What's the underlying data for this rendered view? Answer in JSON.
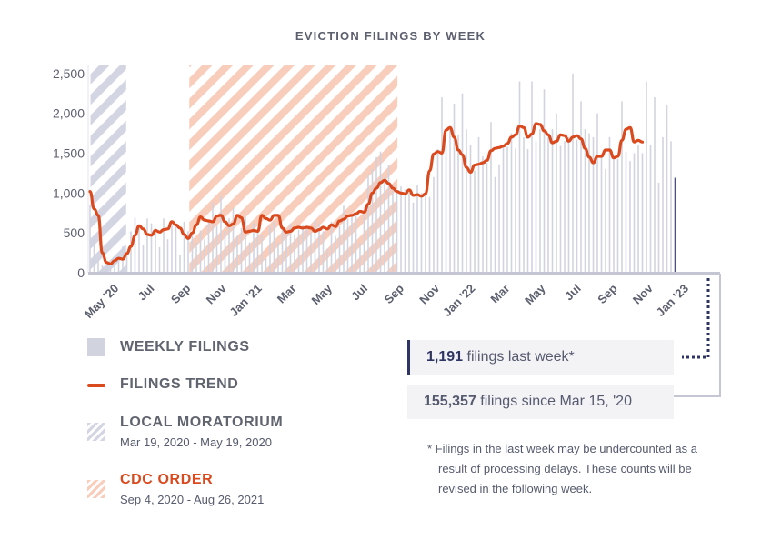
{
  "title": "EVICTION FILINGS BY WEEK",
  "legend": {
    "weekly": "WEEKLY FILINGS",
    "trend": "FILINGS TREND",
    "local": "LOCAL MORATORIUM",
    "local_dates": "Mar 19, 2020 - May 19, 2020",
    "cdc": "CDC ORDER",
    "cdc_dates": "Sep 4, 2020 - Aug 26, 2021"
  },
  "callouts": {
    "last_week_value": "1,191",
    "last_week_text": " filings last week*",
    "total_value": "155,357",
    "total_text": " filings since Mar 15, '20"
  },
  "footnote": "* Filings in the last week may be undercounted as a result of processing delays. These counts will be revised in the following week.",
  "colors": {
    "bars": "#d1d3df",
    "last_bar": "#4b5080",
    "trend": "#d94a1e",
    "local_hatch": "#d3d5e2",
    "cdc_hatch": "#f8cdbb",
    "axis": "#c4c6d4",
    "connector": "#c4c6d4",
    "connector_dot": "#2f3563"
  },
  "chart_data": {
    "type": "bar",
    "title": "EVICTION FILINGS BY WEEK",
    "ylim": [
      0,
      2600
    ],
    "yticks": [
      0,
      500,
      1000,
      1500,
      2000,
      2500
    ],
    "ytick_labels": [
      "0",
      "500",
      "1,000",
      "1,500",
      "2,000",
      "2,500"
    ],
    "xlim": [
      "2020-03-15",
      "2023-02-12"
    ],
    "xticks": [
      {
        "date": "2020-05-01",
        "label": "May '20"
      },
      {
        "date": "2020-07-01",
        "label": "Jul"
      },
      {
        "date": "2020-09-01",
        "label": "Sep"
      },
      {
        "date": "2020-11-01",
        "label": "Nov"
      },
      {
        "date": "2021-01-01",
        "label": "Jan '21"
      },
      {
        "date": "2021-03-01",
        "label": "Mar"
      },
      {
        "date": "2021-05-01",
        "label": "May"
      },
      {
        "date": "2021-07-01",
        "label": "Jul"
      },
      {
        "date": "2021-09-01",
        "label": "Sep"
      },
      {
        "date": "2021-11-01",
        "label": "Nov"
      },
      {
        "date": "2022-01-01",
        "label": "Jan '22"
      },
      {
        "date": "2022-03-01",
        "label": "Mar"
      },
      {
        "date": "2022-05-01",
        "label": "May"
      },
      {
        "date": "2022-07-01",
        "label": "Jul"
      },
      {
        "date": "2022-09-01",
        "label": "Sep"
      },
      {
        "date": "2022-11-01",
        "label": "Nov"
      },
      {
        "date": "2023-01-01",
        "label": "Jan '23"
      }
    ],
    "shaded_periods": [
      {
        "name": "LOCAL MORATORIUM",
        "start": "2020-03-19",
        "end": "2020-05-19"
      },
      {
        "name": "CDC ORDER",
        "start": "2020-09-04",
        "end": "2021-08-26"
      }
    ],
    "series": [
      {
        "name": "WEEKLY FILINGS",
        "type": "bar",
        "start_week": "2020-03-15",
        "interval_days": 7,
        "values": [
          850,
          420,
          180,
          90,
          60,
          50,
          80,
          140,
          330,
          250,
          520,
          690,
          600,
          350,
          680,
          620,
          560,
          320,
          680,
          420,
          590,
          610,
          220,
          640,
          520,
          480,
          380,
          530,
          420,
          650,
          880,
          590,
          960,
          520,
          680,
          810,
          460,
          560,
          700,
          380,
          620,
          520,
          470,
          180,
          580,
          640,
          380,
          590,
          530,
          620,
          480,
          540,
          600,
          560,
          510,
          660,
          620,
          520,
          300,
          640,
          460,
          580,
          840,
          680,
          720,
          760,
          380,
          820,
          1220,
          1300,
          1450,
          1520,
          1200,
          1350,
          1100,
          1000,
          1080,
          1040,
          1000,
          880,
          1100,
          1000,
          1020,
          950,
          1200,
          1550,
          2200,
          1600,
          1840,
          2120,
          1730,
          2250,
          1800,
          1600,
          1280,
          1700,
          1460,
          1380,
          1890,
          1200,
          1360,
          1600,
          1580,
          1750,
          1560,
          2400,
          1700,
          1550,
          2400,
          1650,
          1800,
          2300,
          1700,
          1800,
          2000,
          1590,
          1650,
          1700,
          2500,
          1670,
          2150,
          1800,
          1750,
          1700,
          2000,
          1500,
          1300,
          1700,
          1450,
          1430,
          2150,
          1520,
          1400,
          1500,
          1600,
          1500,
          2400,
          1600,
          2200,
          1130,
          1700,
          2100,
          1650,
          1191
        ]
      },
      {
        "name": "FILINGS TREND",
        "type": "line",
        "start_week": "2020-03-15",
        "interval_days": 7,
        "values": [
          1020,
          800,
          720,
          250,
          130,
          110,
          150,
          180,
          170,
          240,
          330,
          470,
          590,
          550,
          480,
          470,
          530,
          510,
          540,
          550,
          640,
          600,
          560,
          480,
          430,
          500,
          600,
          700,
          660,
          650,
          640,
          710,
          720,
          640,
          590,
          610,
          720,
          690,
          510,
          520,
          530,
          520,
          720,
          680,
          660,
          720,
          720,
          560,
          510,
          520,
          560,
          570,
          560,
          570,
          560,
          520,
          540,
          570,
          550,
          600,
          580,
          650,
          670,
          710,
          720,
          740,
          770,
          760,
          860,
          1000,
          1060,
          1130,
          1160,
          1120,
          1060,
          1020,
          1000,
          990,
          1040,
          970,
          980,
          960,
          990,
          1280,
          1490,
          1520,
          1500,
          1790,
          1820,
          1700,
          1540,
          1480,
          1320,
          1260,
          1350,
          1360,
          1380,
          1410,
          1530,
          1560,
          1570,
          1590,
          1620,
          1700,
          1730,
          1840,
          1820,
          1700,
          1740,
          1870,
          1860,
          1780,
          1730,
          1630,
          1650,
          1730,
          1720,
          1650,
          1700,
          1720,
          1680,
          1560,
          1450,
          1380,
          1460,
          1460,
          1540,
          1540,
          1440,
          1460,
          1660,
          1800,
          1820,
          1640,
          1660,
          1640
        ]
      }
    ]
  }
}
